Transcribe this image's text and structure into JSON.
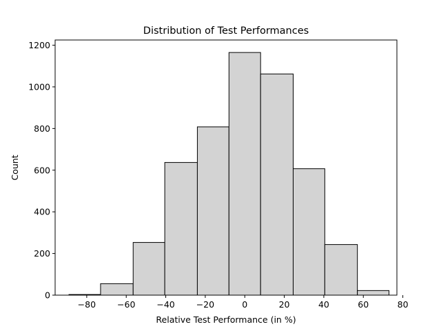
{
  "chart_data": {
    "type": "bar",
    "title": "Distribution of Test Performances",
    "xlabel": "Relative Test Performance (in %)",
    "ylabel": "Count",
    "xlim": [
      -96,
      77
    ],
    "ylim": [
      0,
      1225
    ],
    "xticks": [
      -80,
      -60,
      -40,
      -20,
      0,
      20,
      40,
      60,
      80
    ],
    "xtick_labels": [
      "−80",
      "−60",
      "−40",
      "−20",
      "0",
      "20",
      "40",
      "60",
      "80"
    ],
    "yticks": [
      0,
      200,
      400,
      600,
      800,
      1000,
      1200
    ],
    "ytick_labels": [
      "0",
      "200",
      "400",
      "600",
      "800",
      "1000",
      "1200"
    ],
    "bin_edges": [
      -89,
      -73,
      -56.5,
      -40.5,
      -24,
      -8,
      8,
      24.5,
      40.5,
      57,
      73
    ],
    "counts": [
      3,
      55,
      253,
      637,
      808,
      1165,
      1062,
      607,
      243,
      22
    ],
    "bar_fill": "#d3d3d3",
    "bar_edge": "#000000",
    "grid": false
  }
}
